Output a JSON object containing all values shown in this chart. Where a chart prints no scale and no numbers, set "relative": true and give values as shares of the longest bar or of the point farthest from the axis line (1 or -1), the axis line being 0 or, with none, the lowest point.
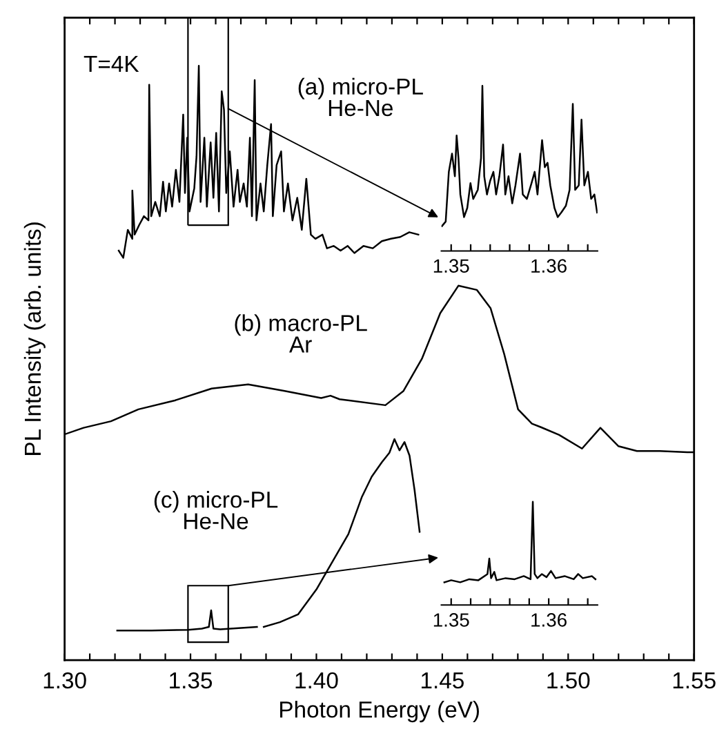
{
  "chart_data": [
    {
      "type": "line",
      "relative": true,
      "xlabel": "Photon Energy (eV)",
      "ylabel": "PL Intensity (arb. units)",
      "xlim": [
        1.3,
        1.55
      ],
      "xticks": [
        {
          "value": 1.3,
          "label": "1.30"
        },
        {
          "value": 1.31,
          "label": null
        },
        {
          "value": 1.32,
          "label": null
        },
        {
          "value": 1.33,
          "label": null
        },
        {
          "value": 1.34,
          "label": null
        },
        {
          "value": 1.35,
          "label": "1.35"
        },
        {
          "value": 1.36,
          "label": null
        },
        {
          "value": 1.37,
          "label": null
        },
        {
          "value": 1.38,
          "label": null
        },
        {
          "value": 1.39,
          "label": null
        },
        {
          "value": 1.4,
          "label": "1.40"
        },
        {
          "value": 1.41,
          "label": null
        },
        {
          "value": 1.42,
          "label": null
        },
        {
          "value": 1.43,
          "label": null
        },
        {
          "value": 1.44,
          "label": null
        },
        {
          "value": 1.45,
          "label": "1.45"
        },
        {
          "value": 1.46,
          "label": null
        },
        {
          "value": 1.47,
          "label": null
        },
        {
          "value": 1.48,
          "label": null
        },
        {
          "value": 1.49,
          "label": null
        },
        {
          "value": 1.5,
          "label": "1.50"
        },
        {
          "value": 1.51,
          "label": null
        },
        {
          "value": 1.52,
          "label": null
        },
        {
          "value": 1.53,
          "label": null
        },
        {
          "value": 1.54,
          "label": null
        },
        {
          "value": 1.55,
          "label": "1.55"
        }
      ],
      "annotations": [
        "T=4K"
      ],
      "series": [
        {
          "name": "(a) micro-PL\nHe-Ne",
          "color": "#000000",
          "x": [
            1.3215,
            1.3233,
            1.3251,
            1.3269,
            1.3269,
            1.3278,
            1.3296,
            1.3315,
            1.3333,
            1.3336,
            1.3344,
            1.336,
            1.3378,
            1.3391,
            1.3402,
            1.3415,
            1.3427,
            1.3442,
            1.3456,
            1.3471,
            1.3478,
            1.3487,
            1.3496,
            1.3515,
            1.3524,
            1.3533,
            1.354,
            1.3555,
            1.3565,
            1.358,
            1.3591,
            1.3602,
            1.3613,
            1.3624,
            1.3633,
            1.3642,
            1.3656,
            1.3671,
            1.3687,
            1.3696,
            1.3711,
            1.3724,
            1.3736,
            1.3744,
            1.3755,
            1.3762,
            1.3778,
            1.3791,
            1.3805,
            1.382,
            1.3827,
            1.3842,
            1.386,
            1.3871,
            1.3887,
            1.3905,
            1.3924,
            1.3942,
            1.396,
            1.3978,
            1.3996,
            1.4024,
            1.4042,
            1.4069,
            1.4096,
            1.4124,
            1.4151,
            1.4187,
            1.4224,
            1.426,
            1.4296,
            1.4333,
            1.4369,
            1.4405
          ],
          "values": [
            0.689,
            0.677,
            0.724,
            0.709,
            0.79,
            0.716,
            0.732,
            0.747,
            0.74,
            0.968,
            0.747,
            0.771,
            0.747,
            0.805,
            0.755,
            0.802,
            0.763,
            0.825,
            0.771,
            0.918,
            0.786,
            0.879,
            0.755,
            0.794,
            0.848,
            1.0,
            0.771,
            0.879,
            0.763,
            0.871,
            0.778,
            0.887,
            0.755,
            0.957,
            0.926,
            0.786,
            0.856,
            0.763,
            0.825,
            0.771,
            0.802,
            0.763,
            0.879,
            0.747,
            0.976,
            0.74,
            0.802,
            0.755,
            0.833,
            0.902,
            0.747,
            0.833,
            0.856,
            0.755,
            0.802,
            0.74,
            0.778,
            0.724,
            0.81,
            0.716,
            0.709,
            0.716,
            0.693,
            0.697,
            0.689,
            0.697,
            0.685,
            0.697,
            0.693,
            0.705,
            0.709,
            0.712,
            0.72,
            0.716
          ]
        },
        {
          "name": "(b) macro-PL\nAr",
          "color": "#000000",
          "x": [
            1.3,
            1.3075,
            1.3184,
            1.3293,
            1.3438,
            1.3584,
            1.3729,
            1.3874,
            1.4019,
            1.4056,
            1.4092,
            1.4274,
            1.4346,
            1.4419,
            1.4492,
            1.4564,
            1.4637,
            1.4692,
            1.4746,
            1.4801,
            1.4856,
            1.4892,
            1.4964,
            1.5055,
            1.5128,
            1.52,
            1.5273,
            1.5364,
            1.5473,
            1.55
          ],
          "values": [
            0.38,
            0.391,
            0.402,
            0.422,
            0.437,
            0.457,
            0.464,
            0.453,
            0.441,
            0.445,
            0.439,
            0.429,
            0.453,
            0.507,
            0.584,
            0.63,
            0.623,
            0.592,
            0.515,
            0.422,
            0.398,
            0.392,
            0.379,
            0.356,
            0.391,
            0.36,
            0.352,
            0.352,
            0.35,
            0.35
          ]
        },
        {
          "name": "(c) micro-PL\nHe-Ne",
          "color": "#000000",
          "x": [
            1.3209,
            1.3345,
            1.3491,
            1.3545,
            1.3573,
            1.3582,
            1.3591,
            1.3618,
            1.3764,
            1.3778,
            1.3791,
            1.3855,
            1.3927,
            1.4,
            1.4064,
            1.4127,
            1.418,
            1.422,
            1.426,
            1.429,
            1.431,
            1.433,
            1.435,
            1.437,
            1.439,
            1.441
          ],
          "values": [
            0.05,
            0.05,
            0.051,
            0.053,
            0.056,
            0.084,
            0.053,
            0.052,
            0.056,
            null,
            0.056,
            0.064,
            0.077,
            0.119,
            0.166,
            0.212,
            0.274,
            0.309,
            0.333,
            0.349,
            0.372,
            0.353,
            0.367,
            0.344,
            0.286,
            0.216
          ]
        }
      ]
    },
    {
      "type": "line",
      "relative": true,
      "xlim": [
        1.349,
        1.365
      ],
      "xticks": [
        {
          "value": 1.35,
          "label": "1.35"
        },
        {
          "value": 1.352,
          "label": null
        },
        {
          "value": 1.354,
          "label": null
        },
        {
          "value": 1.356,
          "label": null
        },
        {
          "value": 1.358,
          "label": null
        },
        {
          "value": 1.36,
          "label": "1.36"
        },
        {
          "value": 1.362,
          "label": null
        },
        {
          "value": 1.364,
          "label": null
        }
      ],
      "series": [
        {
          "color": "#000000",
          "x": [
            1.34906,
            1.34944,
            1.34976,
            1.35009,
            1.35038,
            1.35056,
            1.35075,
            1.35094,
            1.35132,
            1.35165,
            1.35198,
            1.35226,
            1.35273,
            1.35306,
            1.3532,
            1.35339,
            1.35367,
            1.354,
            1.35433,
            1.35461,
            1.35494,
            1.35532,
            1.35555,
            1.35588,
            1.35626,
            1.35659,
            1.35706,
            1.35734,
            1.35776,
            1.35824,
            1.35856,
            1.35885,
            1.35932,
            1.3596,
            1.35988,
            1.36016,
            1.36059,
            1.36092,
            1.36129,
            1.36176,
            1.36214,
            1.36247,
            1.36271,
            1.36308,
            1.36336,
            1.36365,
            1.36402,
            1.36435,
            1.36468,
            1.36496
          ],
          "values": [
            0.151,
            0.178,
            0.479,
            0.589,
            0.452,
            0.699,
            0.562,
            0.342,
            0.205,
            0.26,
            0.411,
            0.315,
            0.37,
            0.562,
            1.0,
            0.452,
            0.342,
            0.425,
            0.479,
            0.342,
            0.452,
            0.644,
            0.342,
            0.452,
            0.288,
            0.397,
            0.589,
            0.342,
            0.315,
            0.411,
            0.479,
            0.342,
            0.671,
            0.507,
            0.534,
            0.397,
            0.26,
            0.205,
            0.233,
            0.274,
            0.37,
            0.89,
            0.37,
            0.397,
            0.795,
            0.397,
            0.479,
            0.315,
            0.342,
            0.233
          ]
        }
      ]
    },
    {
      "type": "line",
      "relative": true,
      "xlim": [
        1.349,
        1.365
      ],
      "xticks": [
        {
          "value": 1.35,
          "label": "1.35"
        },
        {
          "value": 1.352,
          "label": null
        },
        {
          "value": 1.354,
          "label": null
        },
        {
          "value": 1.356,
          "label": null
        },
        {
          "value": 1.358,
          "label": null
        },
        {
          "value": 1.36,
          "label": "1.36"
        },
        {
          "value": 1.362,
          "label": null
        },
        {
          "value": 1.364,
          "label": null
        }
      ],
      "series": [
        {
          "color": "#000000",
          "x": [
            1.3493,
            1.35,
            1.35093,
            1.35186,
            1.35279,
            1.35372,
            1.35391,
            1.35409,
            1.35442,
            1.35465,
            1.35558,
            1.35651,
            1.35744,
            1.35814,
            1.35837,
            1.35856,
            1.35884,
            1.3593,
            1.35977,
            1.36023,
            1.3607,
            1.36163,
            1.36256,
            1.36302,
            1.36349,
            1.36442,
            1.36479
          ],
          "values": [
            0.22,
            0.24,
            0.22,
            0.25,
            0.24,
            0.3,
            0.45,
            0.26,
            0.32,
            0.24,
            0.26,
            0.25,
            0.28,
            0.25,
            1.0,
            0.3,
            0.26,
            0.3,
            0.27,
            0.33,
            0.26,
            0.28,
            0.25,
            0.3,
            0.26,
            0.28,
            0.25
          ]
        }
      ]
    }
  ]
}
